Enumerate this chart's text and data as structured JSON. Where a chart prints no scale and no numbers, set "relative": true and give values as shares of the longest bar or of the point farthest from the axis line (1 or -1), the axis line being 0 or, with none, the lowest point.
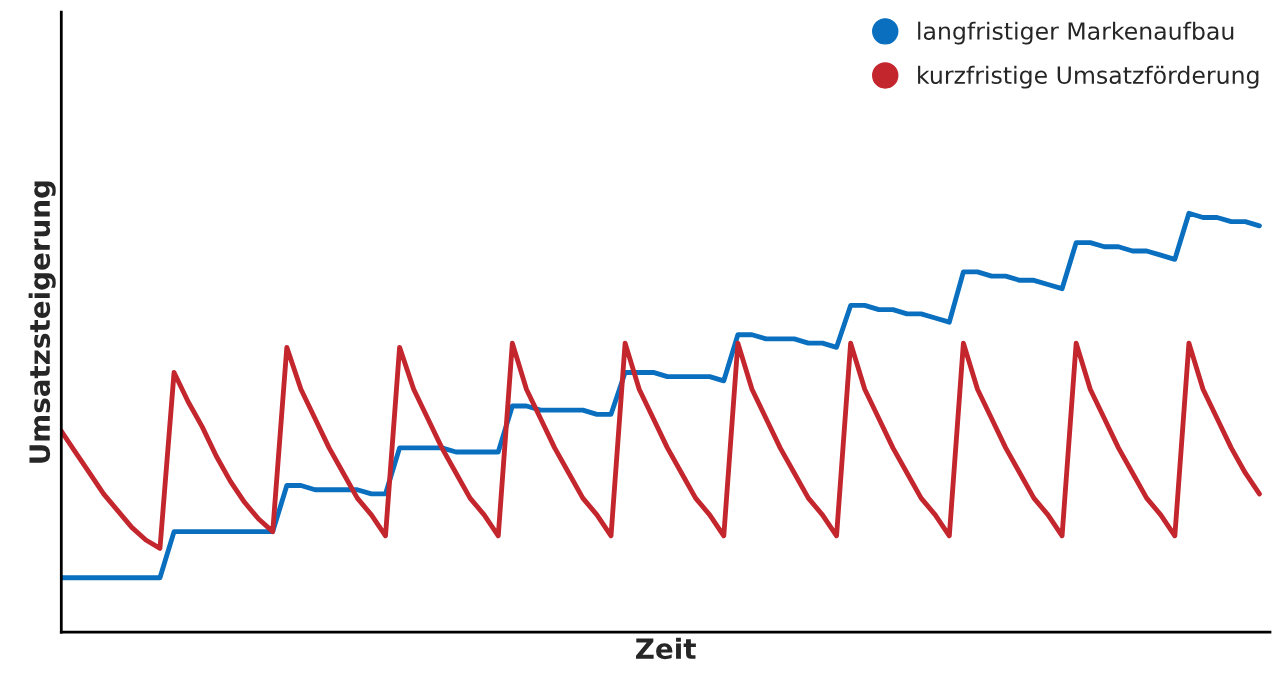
{
  "chart_data": {
    "type": "line",
    "xlabel": "Zeit",
    "ylabel": "Umsatzsteigerung",
    "relative": true,
    "tick_labels": false,
    "legend": "top right",
    "categories": [
      null,
      null,
      null,
      null,
      null,
      null,
      null,
      null,
      null,
      null,
      null,
      null,
      null,
      null,
      null,
      null,
      null,
      null,
      null,
      null,
      null,
      null,
      null,
      null,
      null,
      null,
      null,
      null,
      null,
      null,
      null,
      null,
      null,
      null,
      null,
      null,
      null,
      null,
      null,
      null,
      null,
      null,
      null,
      null,
      null,
      null,
      null,
      null,
      null,
      null,
      null,
      null,
      null,
      null,
      null,
      null,
      null,
      null,
      null,
      null,
      null,
      null,
      null,
      null,
      null,
      null,
      null,
      null,
      null,
      null,
      null,
      null,
      null,
      null,
      null,
      null,
      null,
      null,
      null,
      null,
      null,
      null,
      null,
      null,
      null,
      null
    ],
    "series": [
      {
        "name": "langfristiger Markenaufbau",
        "color": "#0a6fbf",
        "values": [
          0.13,
          0.13,
          0.13,
          0.13,
          0.13,
          0.13,
          0.13,
          0.13,
          0.24,
          0.24,
          0.24,
          0.24,
          0.24,
          0.24,
          0.24,
          0.24,
          0.35,
          0.35,
          0.34,
          0.34,
          0.34,
          0.34,
          0.33,
          0.33,
          0.44,
          0.44,
          0.44,
          0.44,
          0.43,
          0.43,
          0.43,
          0.43,
          0.54,
          0.54,
          0.53,
          0.53,
          0.53,
          0.53,
          0.52,
          0.52,
          0.62,
          0.62,
          0.62,
          0.61,
          0.61,
          0.61,
          0.61,
          0.6,
          0.71,
          0.71,
          0.7,
          0.7,
          0.7,
          0.69,
          0.69,
          0.68,
          0.78,
          0.78,
          0.77,
          0.77,
          0.76,
          0.76,
          0.75,
          0.74,
          0.86,
          0.86,
          0.85,
          0.85,
          0.84,
          0.84,
          0.83,
          0.82,
          0.93,
          0.93,
          0.92,
          0.92,
          0.91,
          0.91,
          0.9,
          0.89,
          1,
          0.99,
          0.99,
          0.98,
          0.98,
          0.97
        ]
      },
      {
        "name": "kurzfristige Umsatzförderung",
        "color": "#c4262e",
        "values": [
          0.48,
          0.43,
          0.38,
          0.33,
          0.29,
          0.25,
          0.22,
          0.2,
          0.62,
          0.55,
          0.49,
          0.42,
          0.36,
          0.31,
          0.27,
          0.24,
          0.68,
          0.58,
          0.51,
          0.44,
          0.38,
          0.32,
          0.28,
          0.23,
          0.68,
          0.58,
          0.51,
          0.44,
          0.38,
          0.32,
          0.28,
          0.23,
          0.69,
          0.58,
          0.51,
          0.44,
          0.38,
          0.32,
          0.28,
          0.23,
          0.69,
          0.58,
          0.51,
          0.44,
          0.38,
          0.32,
          0.28,
          0.23,
          0.69,
          0.58,
          0.51,
          0.44,
          0.38,
          0.32,
          0.28,
          0.23,
          0.69,
          0.58,
          0.51,
          0.44,
          0.38,
          0.32,
          0.28,
          0.23,
          0.69,
          0.58,
          0.51,
          0.44,
          0.38,
          0.32,
          0.28,
          0.23,
          0.69,
          0.58,
          0.51,
          0.44,
          0.38,
          0.32,
          0.28,
          0.23,
          0.69,
          0.58,
          0.51,
          0.44,
          0.38,
          0.33
        ]
      }
    ]
  }
}
